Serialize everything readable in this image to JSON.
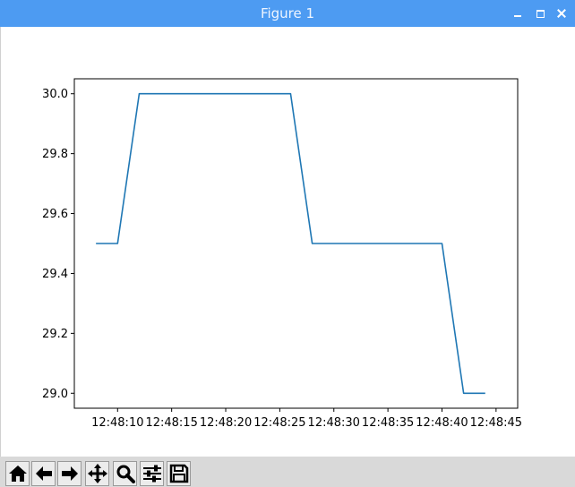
{
  "window": {
    "title": "Figure 1"
  },
  "toolbar": {
    "buttons": [
      {
        "name": "home",
        "icon": "home-icon"
      },
      {
        "name": "back",
        "icon": "arrow-left-icon"
      },
      {
        "name": "forward",
        "icon": "arrow-right-icon"
      },
      {
        "name": "pan",
        "icon": "move-icon"
      },
      {
        "name": "zoom",
        "icon": "magnifier-icon"
      },
      {
        "name": "configure-subplots",
        "icon": "sliders-icon"
      },
      {
        "name": "save",
        "icon": "floppy-disk-icon"
      }
    ]
  },
  "chart_data": {
    "type": "line",
    "title": "",
    "xlabel": "",
    "ylabel": "",
    "line_color": "#1f77b4",
    "x_ticks": [
      "12:48:10",
      "12:48:15",
      "12:48:20",
      "12:48:25",
      "12:48:30",
      "12:48:35",
      "12:48:40",
      "12:48:45"
    ],
    "y_ticks": [
      "29.0",
      "29.2",
      "29.4",
      "29.6",
      "29.8",
      "30.0"
    ],
    "xlim": [
      "12:48:06",
      "12:48:47"
    ],
    "ylim": [
      28.95,
      30.05
    ],
    "series": [
      {
        "x": [
          "12:48:08",
          "12:48:10",
          "12:48:12",
          "12:48:14",
          "12:48:16",
          "12:48:18",
          "12:48:20",
          "12:48:22",
          "12:48:24",
          "12:48:26",
          "12:48:28",
          "12:48:30",
          "12:48:32",
          "12:48:34",
          "12:48:36",
          "12:48:38",
          "12:48:40",
          "12:48:42",
          "12:48:44"
        ],
        "y": [
          29.5,
          29.5,
          30.0,
          30.0,
          30.0,
          30.0,
          30.0,
          30.0,
          30.0,
          30.0,
          29.5,
          29.5,
          29.5,
          29.5,
          29.5,
          29.5,
          29.5,
          29.0,
          29.0
        ]
      }
    ],
    "grid": false,
    "legend": "none"
  }
}
